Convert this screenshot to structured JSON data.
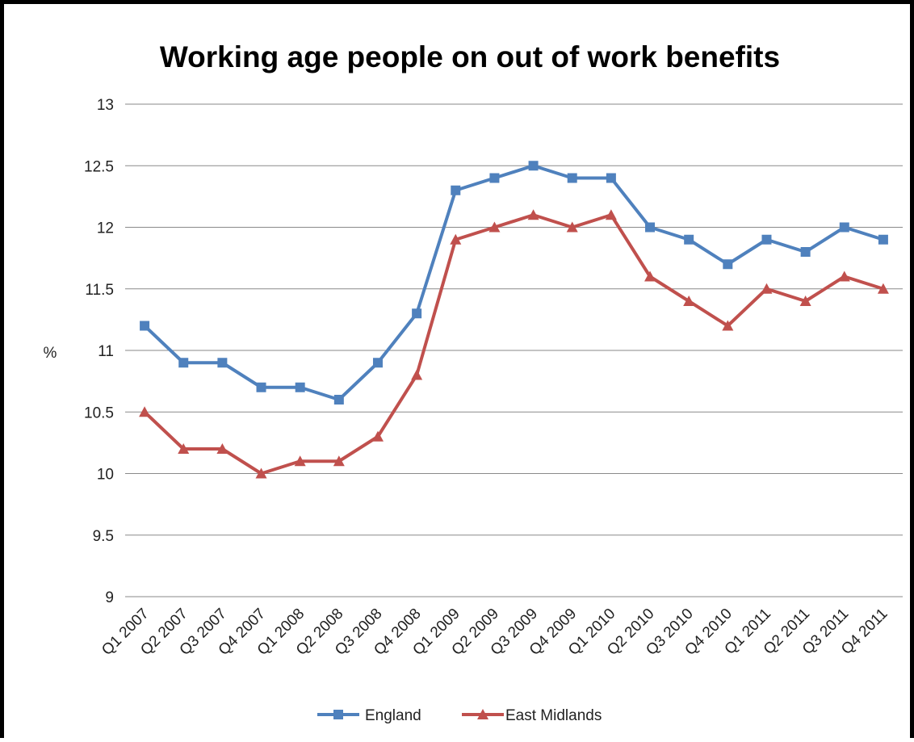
{
  "chart_data": {
    "type": "line",
    "title": "Working age people on out of work benefits",
    "xlabel": "",
    "ylabel": "%",
    "ylim": [
      9,
      13
    ],
    "ytick_step": 0.5,
    "yticks": [
      "9",
      "9.5",
      "10",
      "10.5",
      "11",
      "11.5",
      "12",
      "12.5",
      "13"
    ],
    "grid": true,
    "legend_position": "bottom",
    "categories": [
      "Q1 2007",
      "Q2 2007",
      "Q3 2007",
      "Q4 2007",
      "Q1 2008",
      "Q2 2008",
      "Q3 2008",
      "Q4 2008",
      "Q1 2009",
      "Q2 2009",
      "Q3 2009",
      "Q4 2009",
      "Q1 2010",
      "Q2 2010",
      "Q3 2010",
      "Q4 2010",
      "Q1 2011",
      "Q2 2011",
      "Q3 2011",
      "Q4 2011"
    ],
    "series": [
      {
        "name": "England",
        "color": "#4F81BD",
        "marker": "square",
        "values": [
          11.2,
          10.9,
          10.9,
          10.7,
          10.7,
          10.6,
          10.9,
          11.3,
          12.3,
          12.4,
          12.5,
          12.4,
          12.4,
          12.0,
          11.9,
          11.7,
          11.9,
          11.8,
          12.0,
          11.9
        ]
      },
      {
        "name": "East Midlands",
        "color": "#C0504D",
        "marker": "triangle",
        "values": [
          10.5,
          10.2,
          10.2,
          10.0,
          10.1,
          10.1,
          10.3,
          10.8,
          11.9,
          12.0,
          12.1,
          12.0,
          12.1,
          11.6,
          11.4,
          11.2,
          11.5,
          11.4,
          11.6,
          11.5
        ]
      }
    ]
  }
}
